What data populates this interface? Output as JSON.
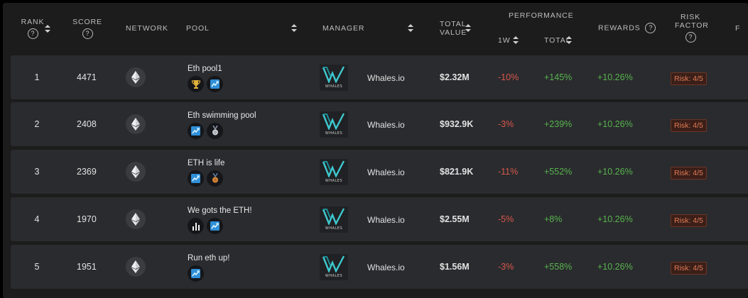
{
  "header": {
    "rank": "RANK",
    "score": "SCORE",
    "network": "NETWORK",
    "pool": "POOL",
    "manager": "MANAGER",
    "total_value_1": "TOTAL",
    "total_value_2": "VALUE",
    "performance": "PERFORMANCE",
    "w1": "1W",
    "total": "TOTAL",
    "rewards": "REWARDS",
    "risk_1": "RISK",
    "risk_2": "FACTOR",
    "overflow": "F",
    "help": "?"
  },
  "colors": {
    "negative": "#d7574c",
    "positive": "#57b34e",
    "risk": "#e07b57"
  },
  "rows": [
    {
      "rank": "1",
      "score": "4471",
      "network_icon": "ethereum-icon",
      "pool": "Eth pool1",
      "badges": [
        "trophy-icon",
        "chart-up-icon"
      ],
      "logo_text": "WHALES",
      "manager": "Whales.io",
      "total_value": "$2.32M",
      "perf_1w": "-10%",
      "perf_total": "+145%",
      "rewards": "+10.26%",
      "risk": "Risk: 4/5"
    },
    {
      "rank": "2",
      "score": "2408",
      "network_icon": "ethereum-icon",
      "pool": "Eth swimming pool",
      "badges": [
        "chart-up-icon",
        "silver-medal-icon"
      ],
      "logo_text": "WHALES",
      "manager": "Whales.io",
      "total_value": "$932.9K",
      "perf_1w": "-3%",
      "perf_total": "+239%",
      "rewards": "+10.26%",
      "risk": "Risk: 4/5"
    },
    {
      "rank": "3",
      "score": "2369",
      "network_icon": "ethereum-icon",
      "pool": "ETH is life",
      "badges": [
        "chart-up-icon",
        "bronze-medal-icon"
      ],
      "logo_text": "WHALES",
      "manager": "Whales.io",
      "total_value": "$821.9K",
      "perf_1w": "-11%",
      "perf_total": "+552%",
      "rewards": "+10.26%",
      "risk": "Risk: 4/5"
    },
    {
      "rank": "4",
      "score": "1970",
      "network_icon": "ethereum-icon",
      "pool": "We gots the ETH!",
      "badges": [
        "bar-chart-icon",
        "chart-up-icon"
      ],
      "logo_text": "WHALES",
      "manager": "Whales.io",
      "total_value": "$2.55M",
      "perf_1w": "-5%",
      "perf_total": "+8%",
      "rewards": "+10.26%",
      "risk": "Risk: 4/5"
    },
    {
      "rank": "5",
      "score": "1951",
      "network_icon": "ethereum-icon",
      "pool": "Run eth up!",
      "badges": [
        "chart-up-icon"
      ],
      "logo_text": "WHALES",
      "manager": "Whales.io",
      "total_value": "$1.56M",
      "perf_1w": "-3%",
      "perf_total": "+558%",
      "rewards": "+10.26%",
      "risk": "Risk: 4/5"
    }
  ]
}
